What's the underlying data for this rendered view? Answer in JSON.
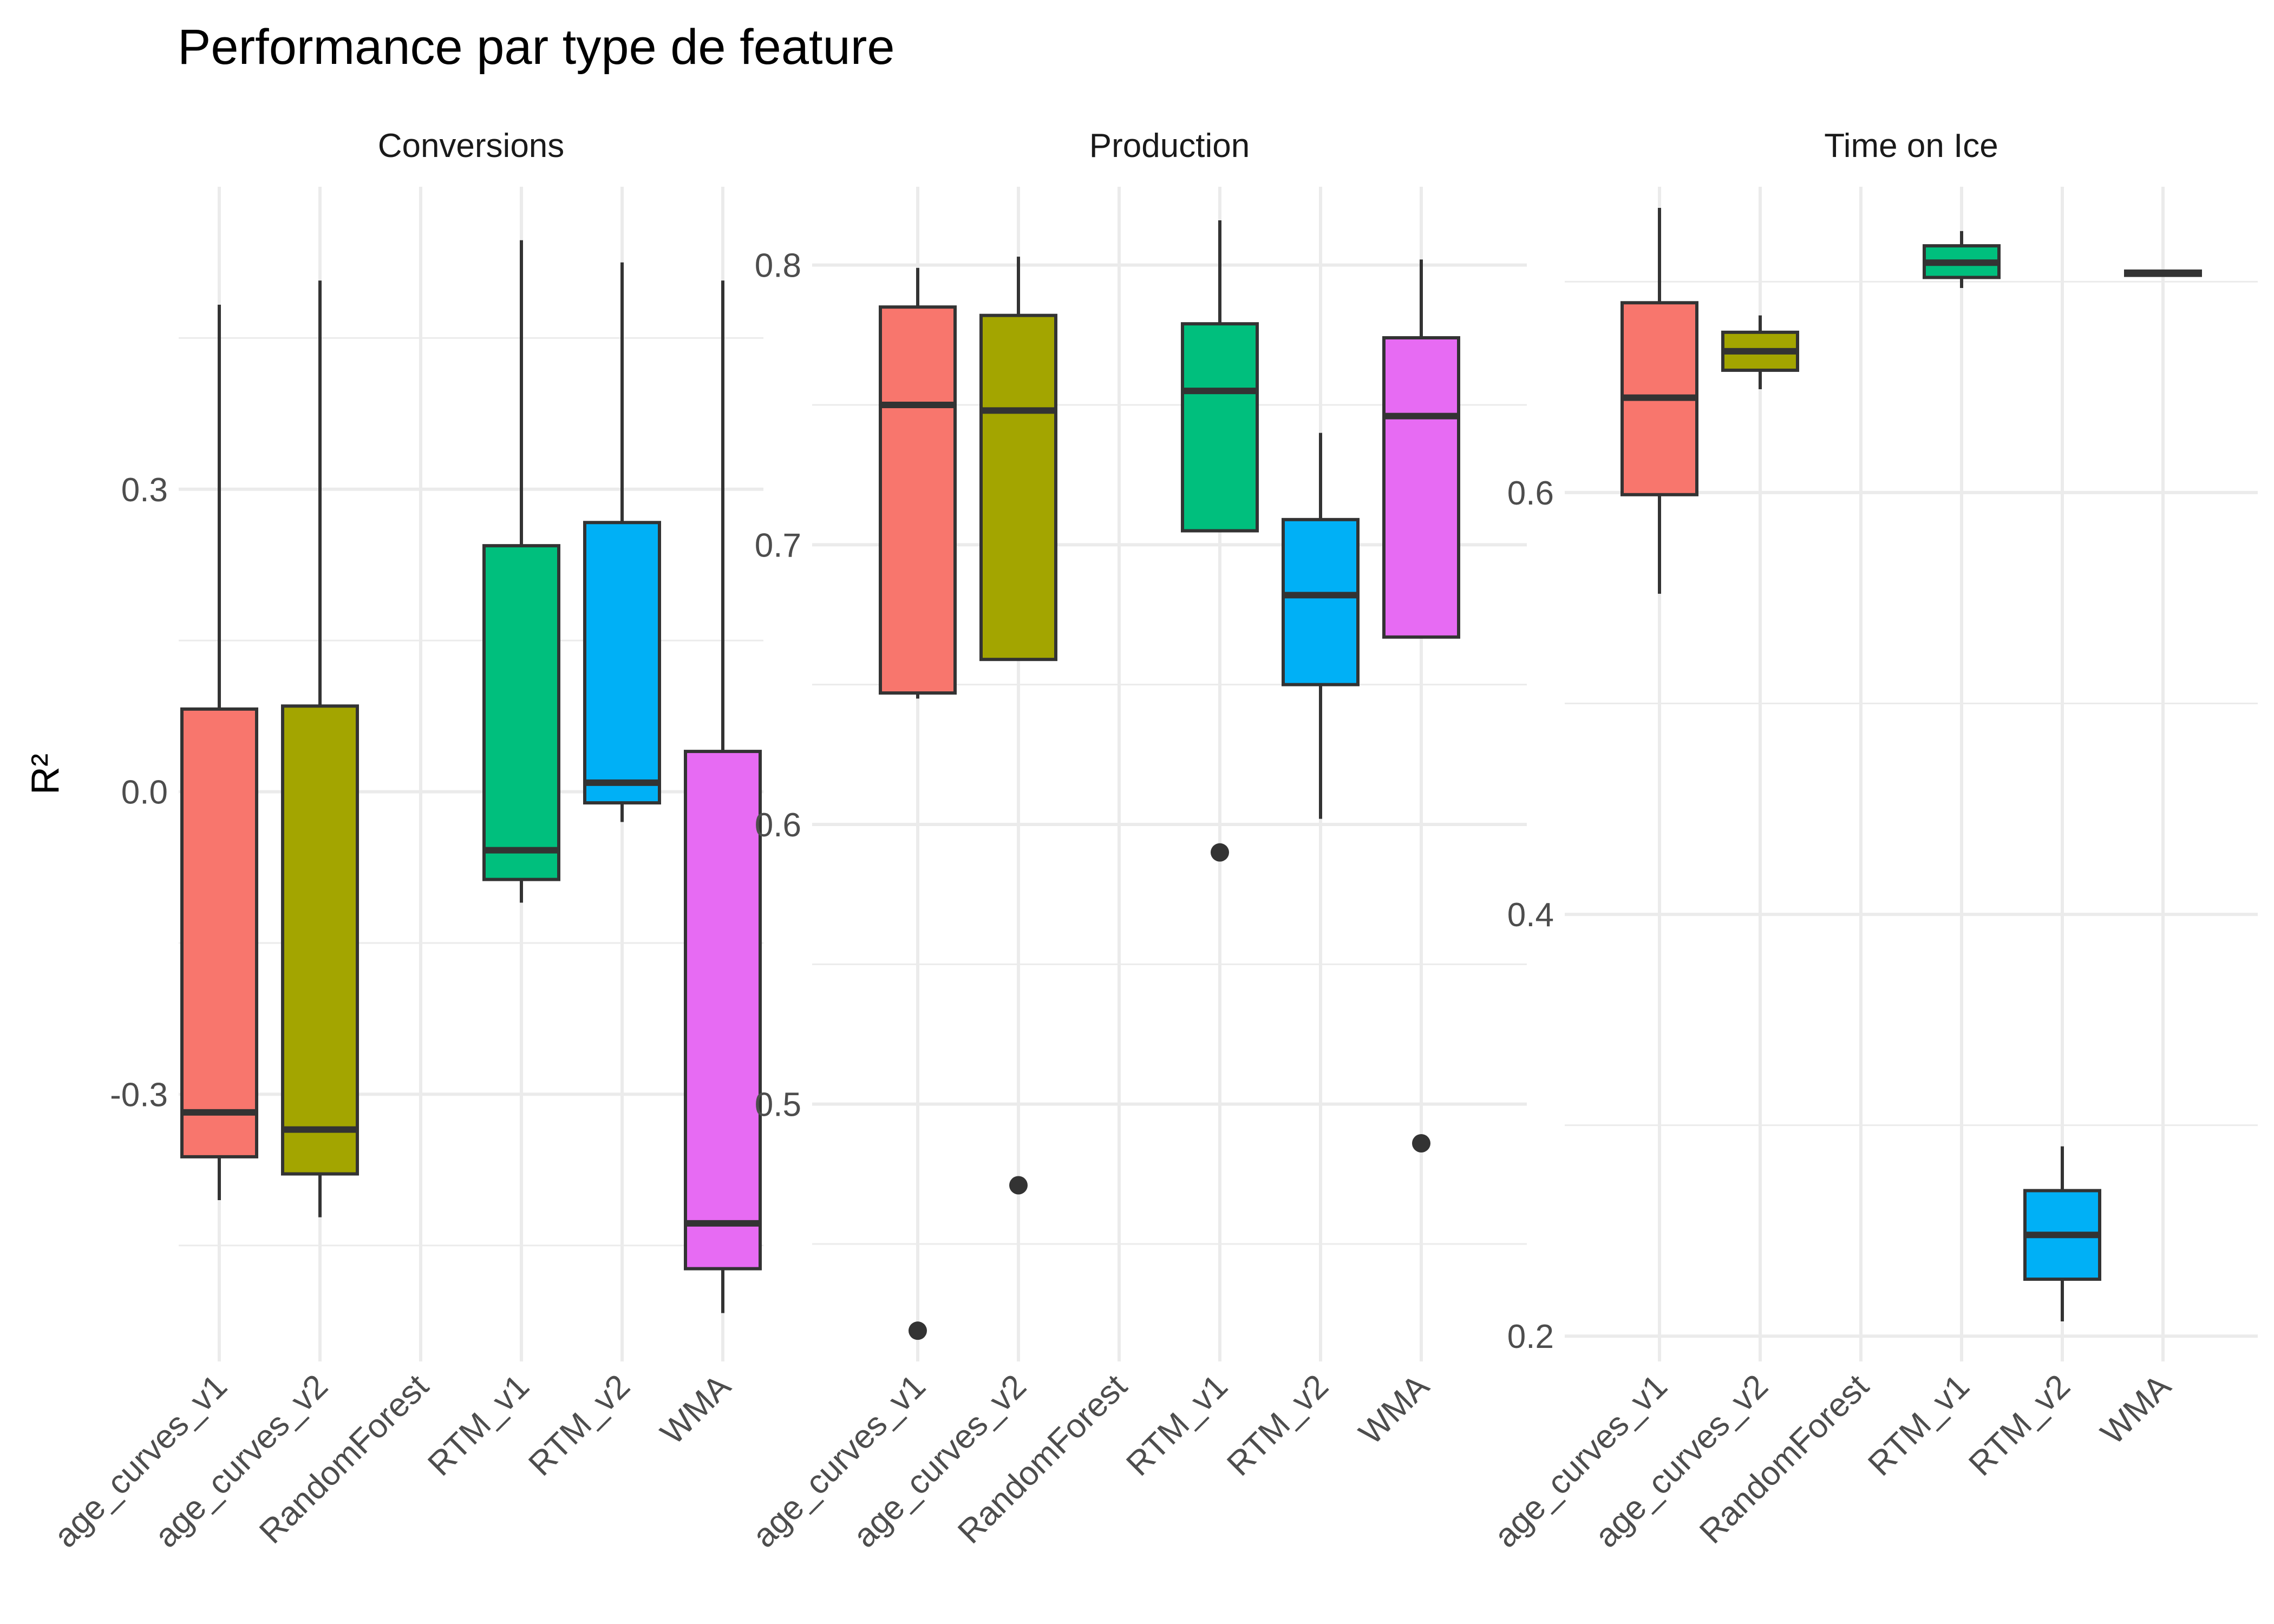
{
  "chart_data": {
    "type": "boxplot",
    "title": "Performance par type de feature",
    "ylabel": "R²",
    "xlabel": "",
    "grid": true,
    "legend": "none",
    "categories": [
      "age_curves_v1",
      "age_curves_v2",
      "RandomForest",
      "RTM_v1",
      "RTM_v2",
      "WMA"
    ],
    "colors": [
      "#F8766D",
      "#A3A500",
      "#00BF7D",
      "#00B0F6",
      "#E76BF3"
    ],
    "facets": [
      {
        "name": "Conversions",
        "ylim": [
          -0.565,
          0.6
        ],
        "yticks": [
          -0.3,
          0.0,
          0.3
        ],
        "ytick_labels": [
          "-0.3",
          "0.0",
          "0.3"
        ],
        "minor_ticks": [
          -0.45,
          -0.15,
          0.15,
          0.45
        ],
        "boxes": [
          {
            "category": "age_curves_v1",
            "min": -0.405,
            "q1": -0.362,
            "median": -0.318,
            "q3": 0.082,
            "max": 0.483,
            "outliers": []
          },
          {
            "category": "age_curves_v2",
            "min": -0.422,
            "q1": -0.379,
            "median": -0.335,
            "q3": 0.085,
            "max": 0.507,
            "outliers": []
          },
          {
            "category": "RTM_v1",
            "min": -0.11,
            "q1": -0.087,
            "median": -0.058,
            "q3": 0.244,
            "max": 0.547,
            "outliers": []
          },
          {
            "category": "RTM_v2",
            "min": -0.03,
            "q1": -0.011,
            "median": 0.009,
            "q3": 0.267,
            "max": 0.525,
            "outliers": []
          },
          {
            "category": "WMA",
            "min": -0.517,
            "q1": -0.473,
            "median": -0.428,
            "q3": 0.04,
            "max": 0.507,
            "outliers": []
          }
        ]
      },
      {
        "name": "Production",
        "ylim": [
          0.408,
          0.828
        ],
        "yticks": [
          0.5,
          0.6,
          0.7,
          0.8
        ],
        "ytick_labels": [
          "0.5",
          "0.6",
          "0.7",
          "0.8"
        ],
        "minor_ticks": [
          0.45,
          0.55,
          0.65,
          0.75
        ],
        "boxes": [
          {
            "category": "age_curves_v1",
            "min": 0.645,
            "q1": 0.647,
            "median": 0.75,
            "q3": 0.785,
            "max": 0.799,
            "outliers": [
              0.419
            ]
          },
          {
            "category": "age_curves_v2",
            "min": 0.659,
            "q1": 0.659,
            "median": 0.748,
            "q3": 0.782,
            "max": 0.803,
            "outliers": [
              0.471
            ]
          },
          {
            "category": "RTM_v1",
            "min": 0.705,
            "q1": 0.705,
            "median": 0.755,
            "q3": 0.779,
            "max": 0.816,
            "outliers": [
              0.59
            ]
          },
          {
            "category": "RTM_v2",
            "min": 0.602,
            "q1": 0.65,
            "median": 0.682,
            "q3": 0.709,
            "max": 0.74,
            "outliers": []
          },
          {
            "category": "WMA",
            "min": 0.667,
            "q1": 0.667,
            "median": 0.746,
            "q3": 0.774,
            "max": 0.802,
            "outliers": [
              0.486
            ]
          }
        ]
      },
      {
        "name": "Time on Ice",
        "ylim": [
          0.188,
          0.745
        ],
        "yticks": [
          0.2,
          0.4,
          0.6
        ],
        "ytick_labels": [
          "0.2",
          "0.4",
          "0.6"
        ],
        "minor_ticks": [
          0.3,
          0.5,
          0.7
        ],
        "boxes": [
          {
            "category": "age_curves_v1",
            "min": 0.552,
            "q1": 0.599,
            "median": 0.645,
            "q3": 0.69,
            "max": 0.735,
            "outliers": []
          },
          {
            "category": "age_curves_v2",
            "min": 0.649,
            "q1": 0.658,
            "median": 0.667,
            "q3": 0.676,
            "max": 0.684,
            "outliers": []
          },
          {
            "category": "RTM_v1",
            "min": 0.697,
            "q1": 0.702,
            "median": 0.709,
            "q3": 0.717,
            "max": 0.724,
            "outliers": []
          },
          {
            "category": "RTM_v2",
            "min": 0.207,
            "q1": 0.227,
            "median": 0.248,
            "q3": 0.269,
            "max": 0.29,
            "outliers": []
          },
          {
            "category": "WMA",
            "min": 0.703,
            "q1": 0.703,
            "median": 0.704,
            "q3": 0.705,
            "max": 0.705,
            "outliers": []
          }
        ]
      }
    ]
  }
}
